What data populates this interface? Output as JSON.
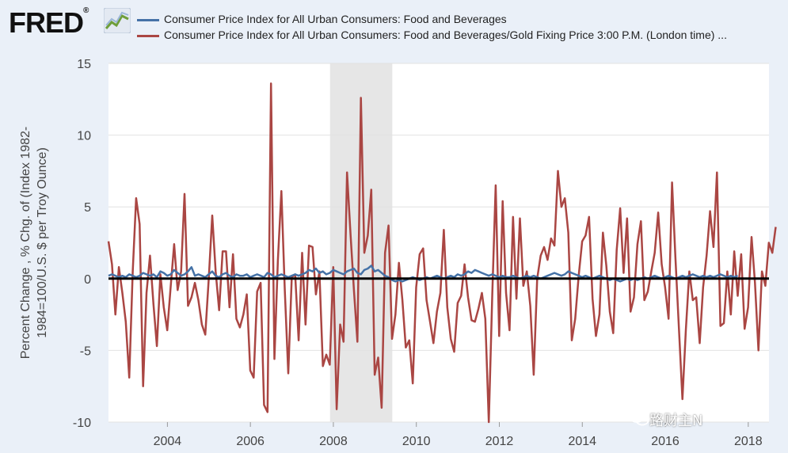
{
  "header": {
    "logo_text": "FRED",
    "logo_reg": "®"
  },
  "watermark": {
    "text": "路财主N",
    "icon": "wechat-icon"
  },
  "colors": {
    "plot_bg": "#ffffff",
    "page_bg": "#eaf0f8",
    "recession": "#e6e6e6",
    "series_1": "#4572a7",
    "series_2": "#aa4643",
    "zero_line": "#000000"
  },
  "chart_data": {
    "type": "line",
    "title": "",
    "ylabel": "Percent Change , % Chg. of (Index 1982-1984=100/U.S. $ per Troy Ounce)",
    "xlabel": "",
    "ylim": [
      -10,
      15
    ],
    "xlim": [
      2002.58,
      2018.5
    ],
    "y_ticks": [
      -10,
      -5,
      0,
      5,
      10,
      15
    ],
    "x_ticks": [
      2004,
      2006,
      2008,
      2010,
      2012,
      2014,
      2016,
      2018
    ],
    "grid": "horizontal",
    "legend_position": "top",
    "recession_shading": [
      2007.92,
      2009.42
    ],
    "reference_line": 0,
    "series": [
      {
        "name": "Consumer Price Index for All Urban Consumers: Food and Beverages",
        "x_start": 2002.58,
        "x_step": 0.08333,
        "values": [
          0.2,
          0.3,
          0.2,
          0.1,
          0.2,
          0.1,
          0.3,
          0.2,
          0.1,
          0.2,
          0.4,
          0.3,
          0.2,
          0.3,
          0.1,
          0.5,
          0.4,
          0.2,
          0.3,
          0.6,
          0.4,
          0.2,
          0.3,
          0.5,
          0.8,
          0.2,
          0.3,
          0.2,
          0.1,
          0.3,
          0.5,
          0.2,
          0.1,
          0.3,
          0.4,
          0.2,
          0.1,
          0.3,
          0.2,
          0.2,
          0.3,
          0.1,
          0.2,
          0.3,
          0.2,
          0.1,
          0.4,
          0.3,
          0.1,
          0.2,
          0.3,
          0.2,
          0.1,
          0.2,
          0.3,
          0.2,
          0.3,
          0.4,
          0.6,
          0.5,
          0.7,
          0.4,
          0.5,
          0.3,
          0.4,
          0.6,
          0.5,
          0.4,
          0.3,
          0.5,
          0.6,
          0.7,
          0.4,
          0.3,
          0.6,
          0.7,
          0.9,
          0.5,
          0.6,
          0.4,
          0.2,
          0.1,
          -0.1,
          -0.2,
          -0.1,
          -0.2,
          -0.1,
          0.0,
          0.1,
          0.0,
          -0.1,
          0.0,
          0.1,
          0.0,
          0.1,
          0.2,
          0.1,
          0.0,
          0.1,
          0.2,
          0.1,
          0.3,
          0.2,
          0.3,
          0.5,
          0.4,
          0.6,
          0.5,
          0.4,
          0.3,
          0.2,
          0.3,
          0.2,
          0.1,
          0.2,
          0.1,
          0.1,
          0.2,
          0.1,
          0.0,
          0.1,
          0.2,
          0.1,
          0.2,
          0.1,
          0.0,
          0.1,
          0.2,
          0.3,
          0.4,
          0.3,
          0.2,
          0.3,
          0.5,
          0.4,
          0.3,
          0.2,
          0.1,
          0.2,
          0.1,
          0.0,
          0.1,
          0.2,
          0.1,
          0.0,
          -0.1,
          0.0,
          -0.1,
          -0.2,
          -0.1,
          0.0,
          -0.1,
          0.0,
          -0.1,
          0.0,
          0.1,
          0.0,
          0.1,
          0.2,
          0.1,
          0.0,
          0.1,
          0.2,
          0.1,
          0.0,
          0.1,
          0.2,
          0.1,
          0.2,
          0.3,
          0.2,
          0.1,
          0.2,
          0.1,
          0.2,
          0.1,
          0.2,
          0.3,
          0.2,
          0.1,
          0.2,
          0.1,
          0.2
        ]
      },
      {
        "name": "Consumer Price Index for All Urban Consumers: Food and Beverages/Gold Fixing Price 3:00 P.M. (London time) ...",
        "x_start": 2002.58,
        "x_step": 0.08333,
        "values": [
          2.6,
          1.0,
          -2.5,
          0.8,
          -1.0,
          -3.0,
          -6.9,
          0.5,
          5.6,
          3.8,
          -7.5,
          -1.0,
          1.6,
          -1.8,
          -4.7,
          0.3,
          -2.0,
          -3.6,
          -0.5,
          2.4,
          -0.8,
          0.5,
          5.9,
          -1.9,
          -1.3,
          -0.3,
          -1.5,
          -3.2,
          -3.9,
          0.0,
          4.4,
          0.5,
          -2.2,
          1.9,
          1.9,
          -2.0,
          1.7,
          -2.8,
          -3.4,
          -2.5,
          -1.1,
          -6.4,
          -6.9,
          -0.9,
          -0.3,
          -8.8,
          -9.3,
          13.6,
          -5.6,
          1.3,
          6.1,
          -0.8,
          -6.6,
          0.1,
          0.3,
          -4.3,
          1.8,
          -3.2,
          2.3,
          2.2,
          -1.1,
          0.5,
          -6.1,
          -5.3,
          -6.0,
          0.8,
          -9.1,
          -3.2,
          -4.4,
          7.4,
          3.1,
          -0.8,
          -4.4,
          12.6,
          1.8,
          3.0,
          6.2,
          -6.7,
          -5.5,
          -9.0,
          1.8,
          3.7,
          -4.2,
          -2.5,
          1.1,
          -1.5,
          -4.8,
          -4.3,
          -7.3,
          -0.6,
          1.7,
          2.1,
          -1.5,
          -3.0,
          -4.5,
          -2.3,
          -1.0,
          3.4,
          -2.0,
          -4.2,
          -5.1,
          -1.7,
          -1.2,
          1.0,
          -1.3,
          -2.9,
          -3.0,
          -2.1,
          -1.0,
          -2.8,
          -10.0,
          -1.1,
          6.5,
          -4.0,
          5.4,
          -1.0,
          -3.6,
          4.3,
          -1.4,
          4.2,
          -0.5,
          0.5,
          -1.9,
          -6.7,
          0.0,
          1.6,
          2.2,
          1.3,
          2.8,
          2.3,
          7.5,
          5.0,
          5.6,
          3.2,
          -4.3,
          -2.8,
          0.2,
          2.6,
          3.0,
          4.3,
          -1.4,
          -4.0,
          -2.5,
          3.2,
          0.9,
          -2.3,
          -3.8,
          2.0,
          4.9,
          0.4,
          4.2,
          -2.3,
          -1.3,
          2.4,
          4.0,
          -1.5,
          -0.9,
          0.5,
          1.8,
          4.6,
          1.0,
          -0.6,
          -2.8,
          6.7,
          1.4,
          -3.5,
          -8.4,
          -3.6,
          0.5,
          -1.5,
          -1.3,
          -4.5,
          -0.6,
          1.6,
          4.7,
          2.2,
          7.4,
          -3.3,
          -3.1,
          0.5,
          -2.5,
          1.9,
          -1.2,
          1.7,
          -3.5,
          -2.0,
          2.9,
          -0.3,
          -5.0,
          0.5,
          -0.5,
          2.5,
          1.8,
          3.6
        ]
      }
    ]
  }
}
